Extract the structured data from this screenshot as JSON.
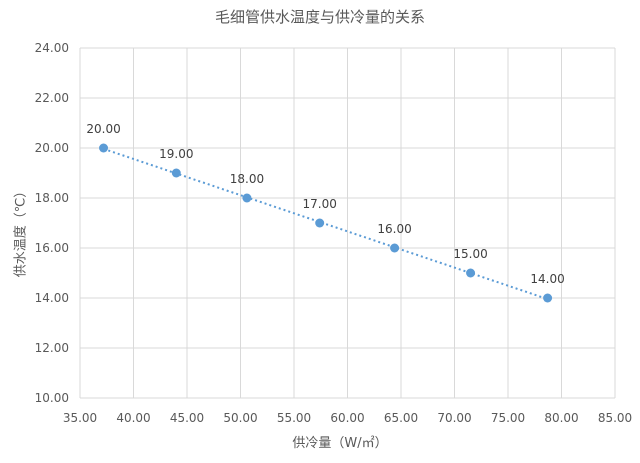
{
  "chart_data": {
    "type": "scatter",
    "title": "毛细管供水温度与供冷量的关系",
    "xlabel": "供冷量（W/㎡）",
    "ylabel": "供水温度（℃）",
    "xlim": [
      35,
      85
    ],
    "ylim": [
      10,
      24
    ],
    "x_ticks": [
      "35.00",
      "40.00",
      "45.00",
      "50.00",
      "55.00",
      "60.00",
      "65.00",
      "70.00",
      "75.00",
      "80.00",
      "85.00"
    ],
    "y_ticks": [
      "10.00",
      "12.00",
      "14.00",
      "16.00",
      "18.00",
      "20.00",
      "22.00",
      "24.00"
    ],
    "grid": true,
    "trendline": "linear",
    "marker_color": "#5B9BD5",
    "points": [
      {
        "x": 37.2,
        "y": 20,
        "label": "20.00"
      },
      {
        "x": 44.0,
        "y": 19,
        "label": "19.00"
      },
      {
        "x": 50.6,
        "y": 18,
        "label": "18.00"
      },
      {
        "x": 57.4,
        "y": 17,
        "label": "17.00"
      },
      {
        "x": 64.4,
        "y": 16,
        "label": "16.00"
      },
      {
        "x": 71.5,
        "y": 15,
        "label": "15.00"
      },
      {
        "x": 78.7,
        "y": 14,
        "label": "14.00"
      }
    ]
  }
}
